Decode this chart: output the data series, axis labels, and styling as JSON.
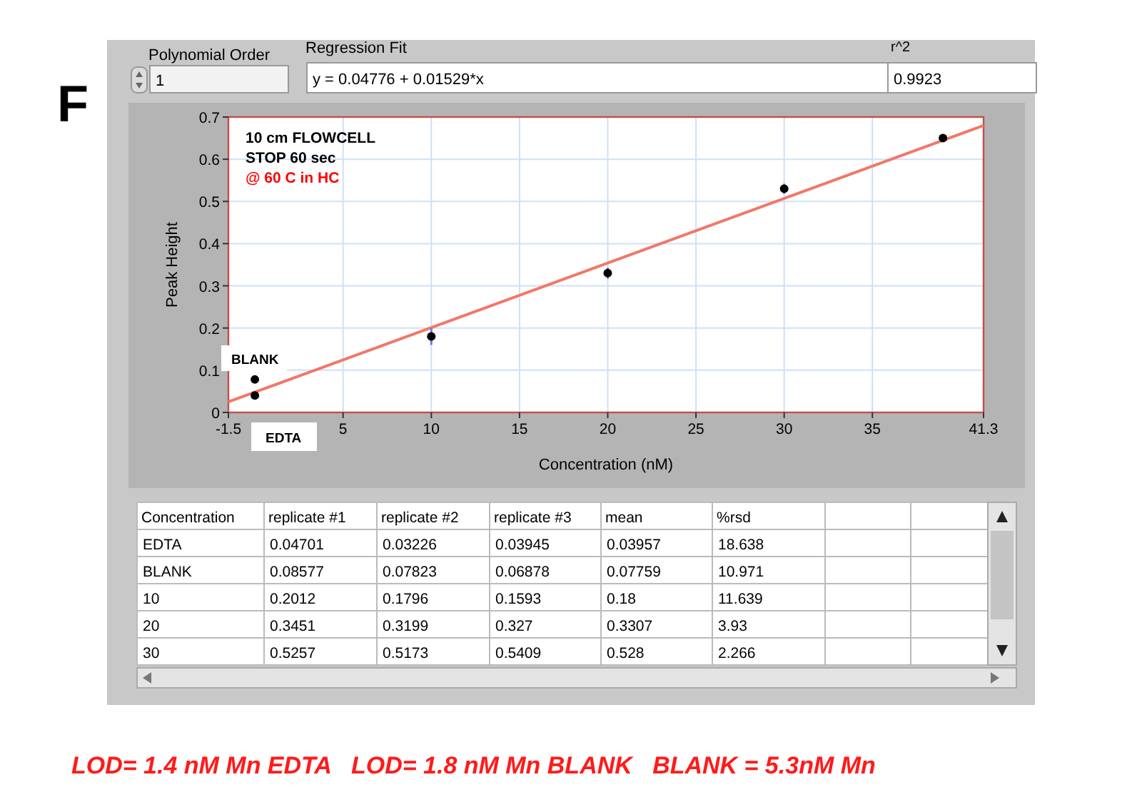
{
  "chart_data": [
    {
      "type": "scatter",
      "xlabel": "Concentration (nM)",
      "ylabel": "Peak Height",
      "xlim": [
        -1.5,
        41.3
      ],
      "ylim": [
        0,
        0.7
      ],
      "xticks": [
        -1.5,
        5,
        10,
        15,
        20,
        25,
        30,
        35,
        41.3
      ],
      "yticks": [
        0,
        0.1,
        0.2,
        0.3,
        0.4,
        0.5,
        0.6,
        0.7
      ],
      "grid": true,
      "series": [
        {
          "type": "scatter",
          "marker": "circle",
          "color": "#000000",
          "x": [
            0,
            0,
            10,
            20,
            30,
            39
          ],
          "values": [
            0.04,
            0.078,
            0.18,
            0.33,
            0.53,
            0.65
          ],
          "errors": [
            null,
            null,
            0.02,
            0.013,
            0.012,
            null
          ]
        },
        {
          "type": "line",
          "color": "#f07868",
          "x": [
            -1.5,
            41.3
          ],
          "values": [
            0.025,
            0.68
          ],
          "marker": "none",
          "line_style": "solid"
        }
      ],
      "annotations": [
        "F",
        "Polynomial Order",
        "1",
        "Regression Fit",
        "y = 0.04776 + 0.01529*x",
        "r^2",
        "0.9923",
        "10 cm FLOWCELL",
        "STOP 60 sec",
        "@ 60 C in HC",
        "BLANK",
        "EDTA",
        "LOD= 1.4 nM Mn EDTA   LOD= 1.8 nM Mn BLANK   BLANK = 5.3nM Mn"
      ]
    },
    {
      "type": "other",
      "categories": [
        "Concentration",
        "replicate #1",
        "replicate #2",
        "replicate #3",
        "mean",
        "%rsd",
        null,
        null
      ],
      "y_categories": [
        "EDTA",
        "BLANK",
        "10",
        "20",
        "30"
      ],
      "cell_labels": [
        [
          "0.04701",
          "0.03226",
          "0.03945",
          "0.03957",
          "18.638"
        ],
        [
          "0.08577",
          "0.07823",
          "0.06878",
          "0.07759",
          "10.971"
        ],
        [
          "0.2012",
          "0.1796",
          "0.1593",
          "0.18",
          "11.639"
        ],
        [
          "0.3451",
          "0.3199",
          "0.327",
          "0.3307",
          "3.93"
        ],
        [
          "0.5257",
          "0.5173",
          "0.5409",
          "0.528",
          "2.266"
        ]
      ]
    }
  ]
}
